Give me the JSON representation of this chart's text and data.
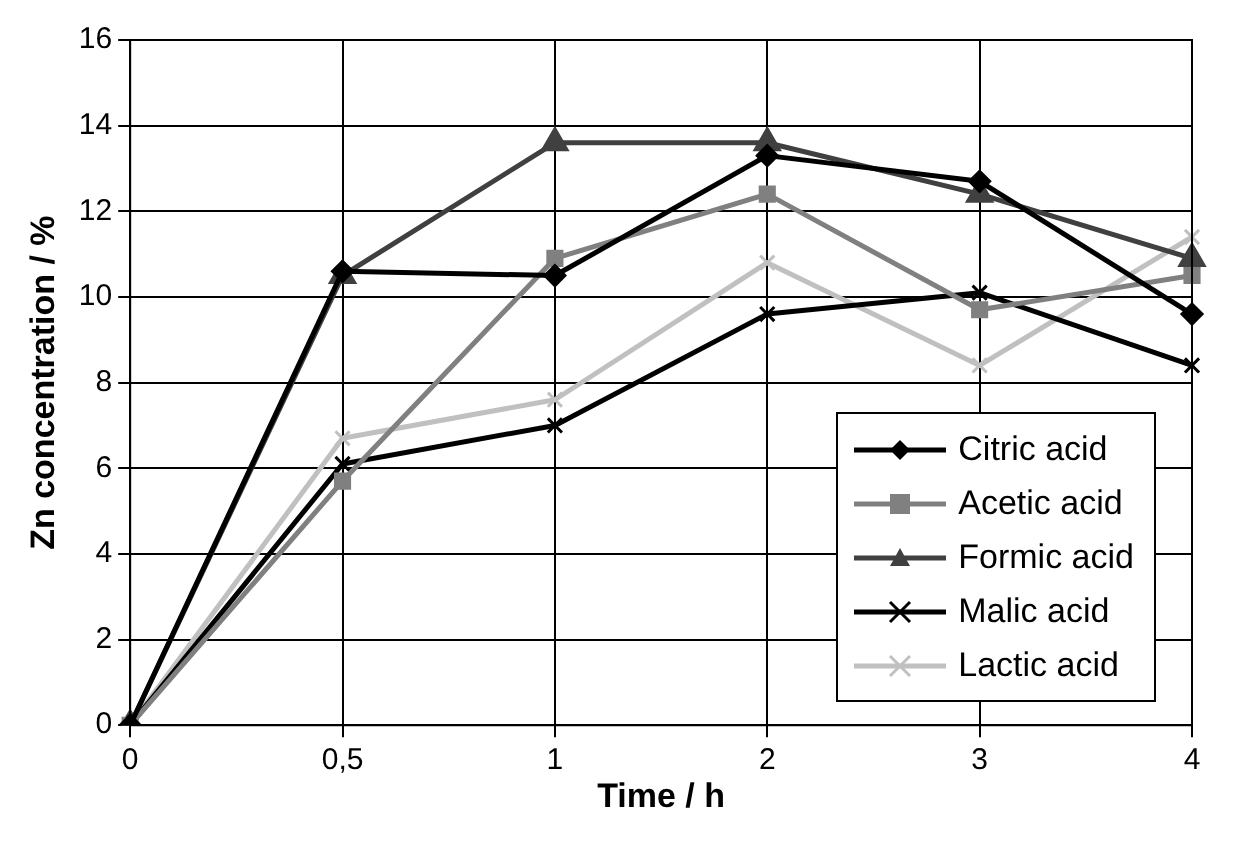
{
  "chart_data": {
    "type": "line",
    "xlabel": "Time / h",
    "ylabel": "Zn concentration / %",
    "categories": [
      "0",
      "0,5",
      "1",
      "2",
      "3",
      "4"
    ],
    "ylim": [
      0,
      16
    ],
    "yticks": [
      0,
      2,
      4,
      6,
      8,
      10,
      12,
      14,
      16
    ],
    "grid": true,
    "legend": "bottom right",
    "line_style": "solid",
    "series": [
      {
        "name": "Citric acid",
        "color": "#000000",
        "marker": "diamond",
        "values": [
          0,
          10.6,
          10.5,
          13.3,
          12.7,
          9.6
        ]
      },
      {
        "name": "Acetic acid",
        "color": "#808080",
        "marker": "square",
        "values": [
          0,
          5.7,
          10.9,
          12.4,
          9.7,
          10.5
        ]
      },
      {
        "name": "Formic acid",
        "color": "#404040",
        "marker": "triangle",
        "values": [
          0,
          10.5,
          13.6,
          13.6,
          12.4,
          10.9
        ]
      },
      {
        "name": "Malic acid",
        "color": "#000000",
        "marker": "cross",
        "values": [
          0,
          6.1,
          7.0,
          9.6,
          10.1,
          8.4
        ]
      },
      {
        "name": "Lactic acid",
        "color": "#c0c0c0",
        "marker": "cross",
        "values": [
          0,
          6.7,
          7.6,
          10.8,
          8.4,
          11.4
        ]
      }
    ]
  }
}
